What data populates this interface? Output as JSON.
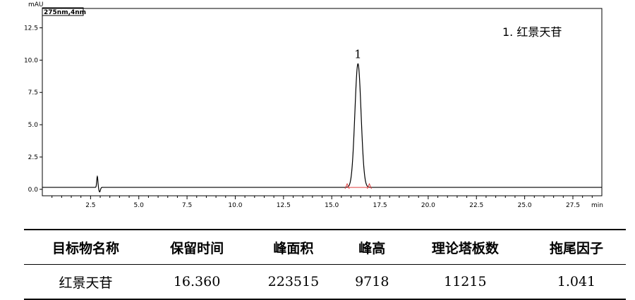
{
  "chart_data": {
    "type": "line",
    "ylabel": "mAU",
    "xlabel": "min",
    "wavelength_label": "275nm,4nm",
    "xlim": [
      0,
      29
    ],
    "ylim": [
      -0.5,
      14.0
    ],
    "x_ticks": [
      2.5,
      5.0,
      7.5,
      10.0,
      12.5,
      15.0,
      17.5,
      20.0,
      22.5,
      25.0,
      27.5
    ],
    "x_tick_labels": [
      "2.5",
      "5.0",
      "7.5",
      "10.0",
      "12.5",
      "15.0",
      "17.5",
      "20.0",
      "22.5",
      "25.0",
      "27.5"
    ],
    "y_ticks": [
      0.0,
      2.5,
      5.0,
      7.5,
      10.0,
      12.5
    ],
    "y_tick_labels": [
      "0.0",
      "2.5",
      "5.0",
      "7.5",
      "10.0",
      "12.5"
    ],
    "legend": "1. 红景天苷",
    "grid": false,
    "baseline": 0.15,
    "peaks": [
      {
        "label": "1",
        "retention_time": 16.36,
        "height": 9.718,
        "sigma": 0.16
      }
    ],
    "artifacts": [
      {
        "x": 2.85,
        "up": 0.85,
        "down": -0.35
      }
    ],
    "integration_marks": {
      "start": 15.8,
      "end": 16.95
    }
  },
  "table": {
    "headers": [
      "目标物名称",
      "保留时间",
      "峰面积",
      "峰高",
      "理论塔板数",
      "拖尾因子"
    ],
    "row": [
      "红景天苷",
      "16.360",
      "223515",
      "9718",
      "11215",
      "1.041"
    ]
  }
}
